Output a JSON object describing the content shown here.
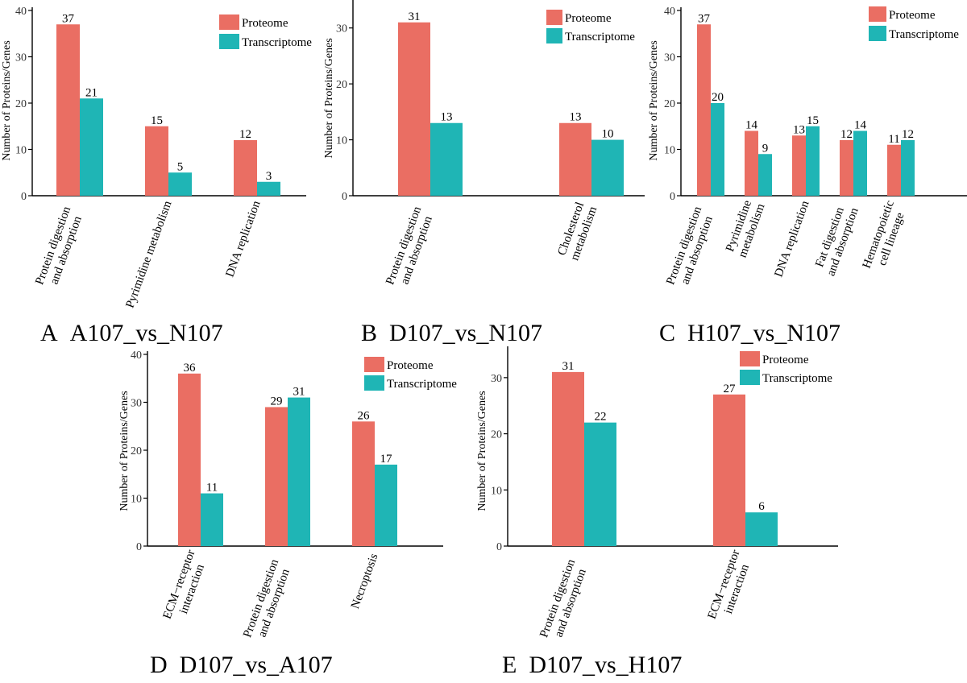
{
  "colors": {
    "proteome": "#EA6E63",
    "transcriptome": "#1FB5B5"
  },
  "chart_data": [
    {
      "id": "A",
      "type": "bar",
      "panel_title": "A  A107_vs_N107",
      "ylabel": "Number of Proteins/Genes",
      "ylim": [
        0,
        40
      ],
      "yticks": [
        0,
        10,
        20,
        30,
        40
      ],
      "legend_position": "top-right",
      "categories": [
        [
          "Protein digestion",
          "and absorption"
        ],
        [
          "Pyrimidine metabolism"
        ],
        [
          "DNA replication"
        ]
      ],
      "series": [
        {
          "name": "Proteome",
          "values": [
            37,
            15,
            12
          ]
        },
        {
          "name": "Transcriptome",
          "values": [
            21,
            5,
            3
          ]
        }
      ]
    },
    {
      "id": "B",
      "type": "bar",
      "panel_title": "B  D107_vs_N107",
      "ylabel": "Number of Proteins/Genes",
      "ylim": [
        0,
        35
      ],
      "yticks": [
        0,
        10,
        20,
        30
      ],
      "legend_position": "top-right",
      "categories": [
        [
          "Protein digestion",
          "and absorption"
        ],
        [
          "Cholesterol",
          "metabolism"
        ]
      ],
      "series": [
        {
          "name": "Proteome",
          "values": [
            31,
            13
          ]
        },
        {
          "name": "Transcriptome",
          "values": [
            13,
            10
          ]
        }
      ]
    },
    {
      "id": "C",
      "type": "bar",
      "panel_title": "C  H107_vs_N107",
      "ylabel": "Number of Proteins/Genes",
      "ylim": [
        0,
        40
      ],
      "yticks": [
        0,
        10,
        20,
        30,
        40
      ],
      "legend_position": "top-right",
      "categories": [
        [
          "Protein digestion",
          "and absorption"
        ],
        [
          "Pyrimidine",
          "metabolism"
        ],
        [
          "DNA replication"
        ],
        [
          "Fat digestion",
          "and absorption"
        ],
        [
          "Hematopoietic",
          "cell lineage"
        ]
      ],
      "series": [
        {
          "name": "Proteome",
          "values": [
            37,
            14,
            13,
            12,
            11
          ]
        },
        {
          "name": "Transcriptome",
          "values": [
            20,
            9,
            15,
            14,
            12
          ]
        }
      ]
    },
    {
      "id": "D",
      "type": "bar",
      "panel_title": "D  D107_vs_A107",
      "ylabel": "Number of Proteins/Genes",
      "ylim": [
        0,
        40
      ],
      "yticks": [
        0,
        10,
        20,
        30,
        40
      ],
      "legend_position": "top-right",
      "categories": [
        [
          "ECM−receptor",
          "interaction"
        ],
        [
          "Protein digestion",
          "and absorption"
        ],
        [
          "Necroptosis"
        ]
      ],
      "series": [
        {
          "name": "Proteome",
          "values": [
            36,
            29,
            26
          ]
        },
        {
          "name": "Transcriptome",
          "values": [
            11,
            31,
            17
          ]
        }
      ]
    },
    {
      "id": "E",
      "type": "bar",
      "panel_title": "E  D107_vs_H107",
      "ylabel": "Number of Proteins/Genes",
      "ylim": [
        0,
        35
      ],
      "yticks": [
        0,
        10,
        20,
        30
      ],
      "legend_position": "top-right",
      "categories": [
        [
          "Protein digestion",
          "and absorption"
        ],
        [
          "ECM−receptor",
          "interaction"
        ]
      ],
      "series": [
        {
          "name": "Proteome",
          "values": [
            31,
            27
          ]
        },
        {
          "name": "Transcriptome",
          "values": [
            22,
            6
          ]
        }
      ]
    }
  ]
}
